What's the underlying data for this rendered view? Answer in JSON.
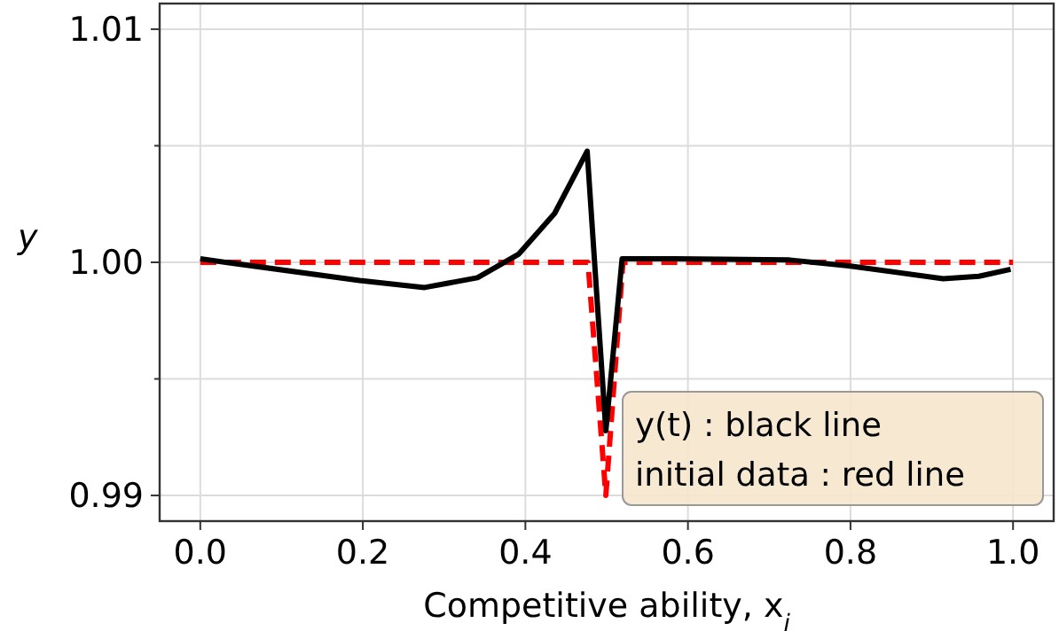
{
  "chart_data": {
    "type": "line",
    "xlabel": "Competitive ability, x$_{i}$",
    "ylabel": "y",
    "xlim": [
      -0.05,
      1.05
    ],
    "ylim": [
      0.9889,
      1.0111
    ],
    "xticks": [
      {
        "value": 0,
        "label": "0.0"
      },
      0.2,
      0.4,
      0.6,
      0.8,
      {
        "value": 1,
        "label": "1.0"
      }
    ],
    "yticks": [
      0.99,
      {
        "value": 0.995,
        "label": null
      },
      {
        "value": 1,
        "label": "1.00"
      },
      {
        "value": 1.005,
        "label": null
      },
      1.01
    ],
    "grid": true,
    "series": [
      {
        "color": "#ff0000",
        "line_style": "dashed",
        "x": [
          0,
          0.477,
          0.499,
          0.52,
          1
        ],
        "values": [
          1,
          1,
          0.99,
          1,
          1
        ]
      },
      {
        "color": "#000000",
        "line_style": "solid",
        "x": [
          0,
          0.196,
          0.276,
          0.341,
          0.392,
          0.436,
          0.476,
          0.499,
          0.519,
          0.58,
          0.725,
          0.798,
          0.914,
          0.958,
          0.997
        ],
        "values": [
          1.00015,
          0.99922,
          0.99892,
          0.99934,
          1.00036,
          1.0021,
          1.00477,
          0.99278,
          1.00015,
          1.00015,
          1.0001,
          0.99985,
          0.9993,
          0.9994,
          0.9997
        ]
      }
    ],
    "annotations": [
      "y(t) : black line",
      "initial data : red line"
    ]
  }
}
